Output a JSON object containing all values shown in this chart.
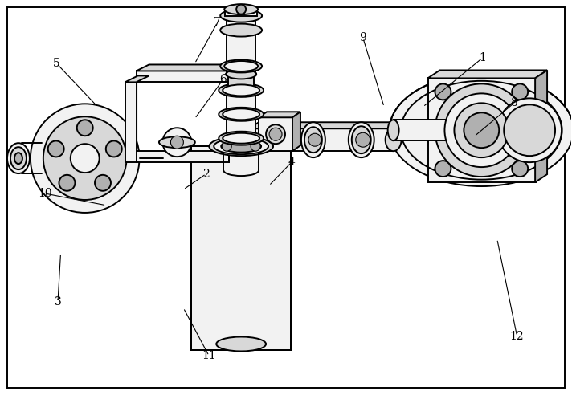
{
  "background_color": "#ffffff",
  "line_color": "#000000",
  "fig_width": 7.12,
  "fig_height": 4.92,
  "dpi": 100,
  "lw_heavy": 2.0,
  "lw_main": 1.4,
  "lw_thin": 0.8,
  "gray_light": "#f2f2f2",
  "gray_mid": "#d8d8d8",
  "gray_dark": "#b0b0b0",
  "leaders": {
    "1": {
      "lp": [
        0.845,
        0.855
      ],
      "ae": [
        0.74,
        0.73
      ]
    },
    "2": {
      "lp": [
        0.36,
        0.56
      ],
      "ae": [
        0.32,
        0.52
      ]
    },
    "3": {
      "lp": [
        0.1,
        0.235
      ],
      "ae": [
        0.105,
        0.36
      ]
    },
    "4": {
      "lp": [
        0.51,
        0.59
      ],
      "ae": [
        0.47,
        0.53
      ]
    },
    "5": {
      "lp": [
        0.098,
        0.84
      ],
      "ae": [
        0.17,
        0.73
      ]
    },
    "6": {
      "lp": [
        0.39,
        0.8
      ],
      "ae": [
        0.34,
        0.7
      ]
    },
    "7": {
      "lp": [
        0.38,
        0.945
      ],
      "ae": [
        0.34,
        0.84
      ]
    },
    "8": {
      "lp": [
        0.9,
        0.74
      ],
      "ae": [
        0.83,
        0.655
      ]
    },
    "9": {
      "lp": [
        0.635,
        0.905
      ],
      "ae": [
        0.672,
        0.73
      ]
    },
    "10": {
      "lp": [
        0.078,
        0.51
      ],
      "ae": [
        0.185,
        0.48
      ]
    },
    "11": {
      "lp": [
        0.365,
        0.098
      ],
      "ae": [
        0.32,
        0.22
      ]
    },
    "12": {
      "lp": [
        0.905,
        0.148
      ],
      "ae": [
        0.87,
        0.395
      ]
    }
  }
}
